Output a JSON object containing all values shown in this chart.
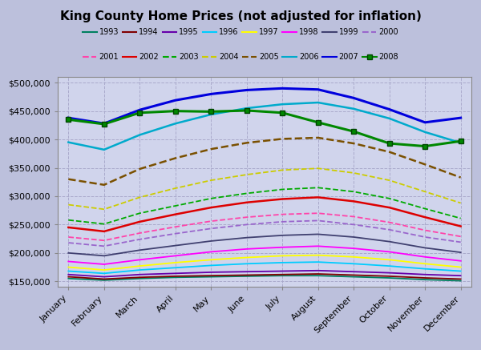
{
  "title": "King County Home Prices (not adjusted for inflation)",
  "months": [
    "January",
    "February",
    "March",
    "April",
    "May",
    "June",
    "July",
    "August",
    "September",
    "October",
    "November",
    "December"
  ],
  "ylim": [
    140000,
    510000
  ],
  "yticks": [
    150000,
    200000,
    250000,
    300000,
    350000,
    400000,
    450000,
    500000
  ],
  "background_color": "#bcc0dc",
  "plot_bg_color": "#d0d4ec",
  "series": {
    "1993": {
      "color": "#008060",
      "linestyle": "-",
      "linewidth": 1.3,
      "data": [
        155000,
        152000,
        155000,
        157000,
        158000,
        159000,
        160000,
        160000,
        158000,
        156000,
        153000,
        151000
      ]
    },
    "1994": {
      "color": "#800000",
      "linestyle": "-",
      "linewidth": 1.3,
      "data": [
        158000,
        154000,
        157000,
        159000,
        160000,
        161000,
        162000,
        163000,
        161000,
        159000,
        156000,
        154000
      ]
    },
    "1995": {
      "color": "#6600aa",
      "linestyle": "-",
      "linewidth": 1.3,
      "data": [
        162000,
        158000,
        162000,
        164000,
        166000,
        167000,
        168000,
        169000,
        167000,
        165000,
        162000,
        160000
      ]
    },
    "1996": {
      "color": "#00ccff",
      "linestyle": "-",
      "linewidth": 1.3,
      "data": [
        168000,
        164000,
        170000,
        174000,
        178000,
        181000,
        183000,
        184000,
        181000,
        177000,
        172000,
        168000
      ]
    },
    "1997": {
      "color": "#ffff00",
      "linestyle": "-",
      "linewidth": 1.3,
      "data": [
        175000,
        170000,
        177000,
        183000,
        188000,
        192000,
        195000,
        196000,
        193000,
        188000,
        181000,
        175000
      ]
    },
    "1998": {
      "color": "#ff00ff",
      "linestyle": "-",
      "linewidth": 1.3,
      "data": [
        185000,
        180000,
        188000,
        195000,
        202000,
        207000,
        210000,
        212000,
        208000,
        202000,
        193000,
        186000
      ]
    },
    "1999": {
      "color": "#404070",
      "linestyle": "-",
      "linewidth": 1.3,
      "data": [
        200000,
        195000,
        205000,
        213000,
        221000,
        227000,
        231000,
        233000,
        228000,
        220000,
        209000,
        201000
      ]
    },
    "2000": {
      "color": "#9966cc",
      "linestyle": "--",
      "linewidth": 1.3,
      "data": [
        218000,
        212000,
        224000,
        234000,
        243000,
        250000,
        255000,
        257000,
        250000,
        241000,
        228000,
        219000
      ]
    },
    "2001": {
      "color": "#ff44aa",
      "linestyle": "--",
      "linewidth": 1.3,
      "data": [
        228000,
        222000,
        235000,
        246000,
        256000,
        263000,
        268000,
        270000,
        264000,
        254000,
        240000,
        229000
      ]
    },
    "2002": {
      "color": "#dd0000",
      "linestyle": "-",
      "linewidth": 1.8,
      "data": [
        245000,
        238000,
        255000,
        268000,
        280000,
        289000,
        295000,
        298000,
        291000,
        280000,
        263000,
        247000
      ]
    },
    "2003": {
      "color": "#00aa00",
      "linestyle": "--",
      "linewidth": 1.3,
      "data": [
        258000,
        251000,
        270000,
        283000,
        296000,
        305000,
        312000,
        315000,
        308000,
        296000,
        278000,
        261000
      ]
    },
    "2004": {
      "color": "#cccc00",
      "linestyle": "--",
      "linewidth": 1.3,
      "data": [
        285000,
        277000,
        298000,
        314000,
        328000,
        338000,
        346000,
        349000,
        341000,
        328000,
        308000,
        288000
      ]
    },
    "2005": {
      "color": "#7a5000",
      "linestyle": "--",
      "linewidth": 1.8,
      "data": [
        330000,
        320000,
        348000,
        367000,
        383000,
        394000,
        401000,
        403000,
        393000,
        378000,
        356000,
        333000
      ]
    },
    "2006": {
      "color": "#00aacc",
      "linestyle": "-",
      "linewidth": 1.8,
      "data": [
        395000,
        382000,
        408000,
        428000,
        444000,
        455000,
        462000,
        465000,
        454000,
        437000,
        413000,
        394000
      ]
    },
    "2007": {
      "color": "#0000dd",
      "linestyle": "-",
      "linewidth": 2.2,
      "data": [
        438000,
        428000,
        452000,
        469000,
        480000,
        487000,
        490000,
        488000,
        473000,
        453000,
        430000,
        438000
      ]
    },
    "2008": {
      "color": "#008800",
      "linestyle": "-",
      "linewidth": 2.2,
      "marker": "s",
      "markersize": 5,
      "data": [
        435000,
        427000,
        447000,
        450000,
        449000,
        451000,
        447000,
        430000,
        414000,
        393000,
        388000,
        397000
      ]
    }
  }
}
